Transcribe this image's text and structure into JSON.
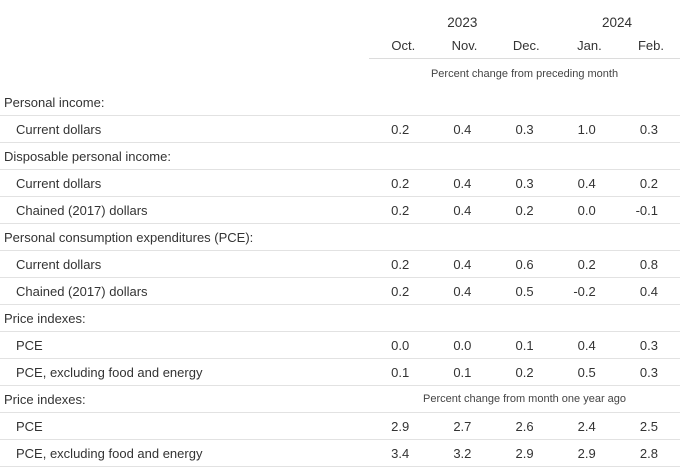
{
  "header": {
    "years": [
      "2023",
      "2024"
    ],
    "months": [
      "Oct.",
      "Nov.",
      "Dec.",
      "Jan.",
      "Feb."
    ],
    "unit_monthly": "Percent change from preceding month",
    "unit_yearly": "Percent change from month one year ago"
  },
  "sections": [
    {
      "title": "Personal income:",
      "rows": [
        {
          "label": "Current dollars",
          "values": [
            "0.2",
            "0.4",
            "0.3",
            "1.0",
            "0.3"
          ]
        }
      ]
    },
    {
      "title": "Disposable personal income:",
      "rows": [
        {
          "label": "Current dollars",
          "values": [
            "0.2",
            "0.4",
            "0.3",
            "0.4",
            "0.2"
          ]
        },
        {
          "label": "Chained (2017) dollars",
          "values": [
            "0.2",
            "0.4",
            "0.2",
            "0.0",
            "-0.1"
          ]
        }
      ]
    },
    {
      "title": "Personal consumption expenditures (PCE):",
      "rows": [
        {
          "label": "Current dollars",
          "values": [
            "0.2",
            "0.4",
            "0.6",
            "0.2",
            "0.8"
          ]
        },
        {
          "label": "Chained (2017) dollars",
          "values": [
            "0.2",
            "0.4",
            "0.5",
            "-0.2",
            "0.4"
          ]
        }
      ]
    },
    {
      "title": "Price indexes:",
      "rows": [
        {
          "label": "PCE",
          "values": [
            "0.0",
            "0.0",
            "0.1",
            "0.4",
            "0.3"
          ]
        },
        {
          "label": "PCE, excluding food and energy",
          "values": [
            "0.1",
            "0.1",
            "0.2",
            "0.5",
            "0.3"
          ]
        }
      ]
    },
    {
      "title": "Price indexes:",
      "rows": [
        {
          "label": "PCE",
          "values": [
            "2.9",
            "2.7",
            "2.6",
            "2.4",
            "2.5"
          ]
        },
        {
          "label": "PCE, excluding food and energy",
          "values": [
            "3.4",
            "3.2",
            "2.9",
            "2.9",
            "2.8"
          ]
        }
      ]
    }
  ]
}
